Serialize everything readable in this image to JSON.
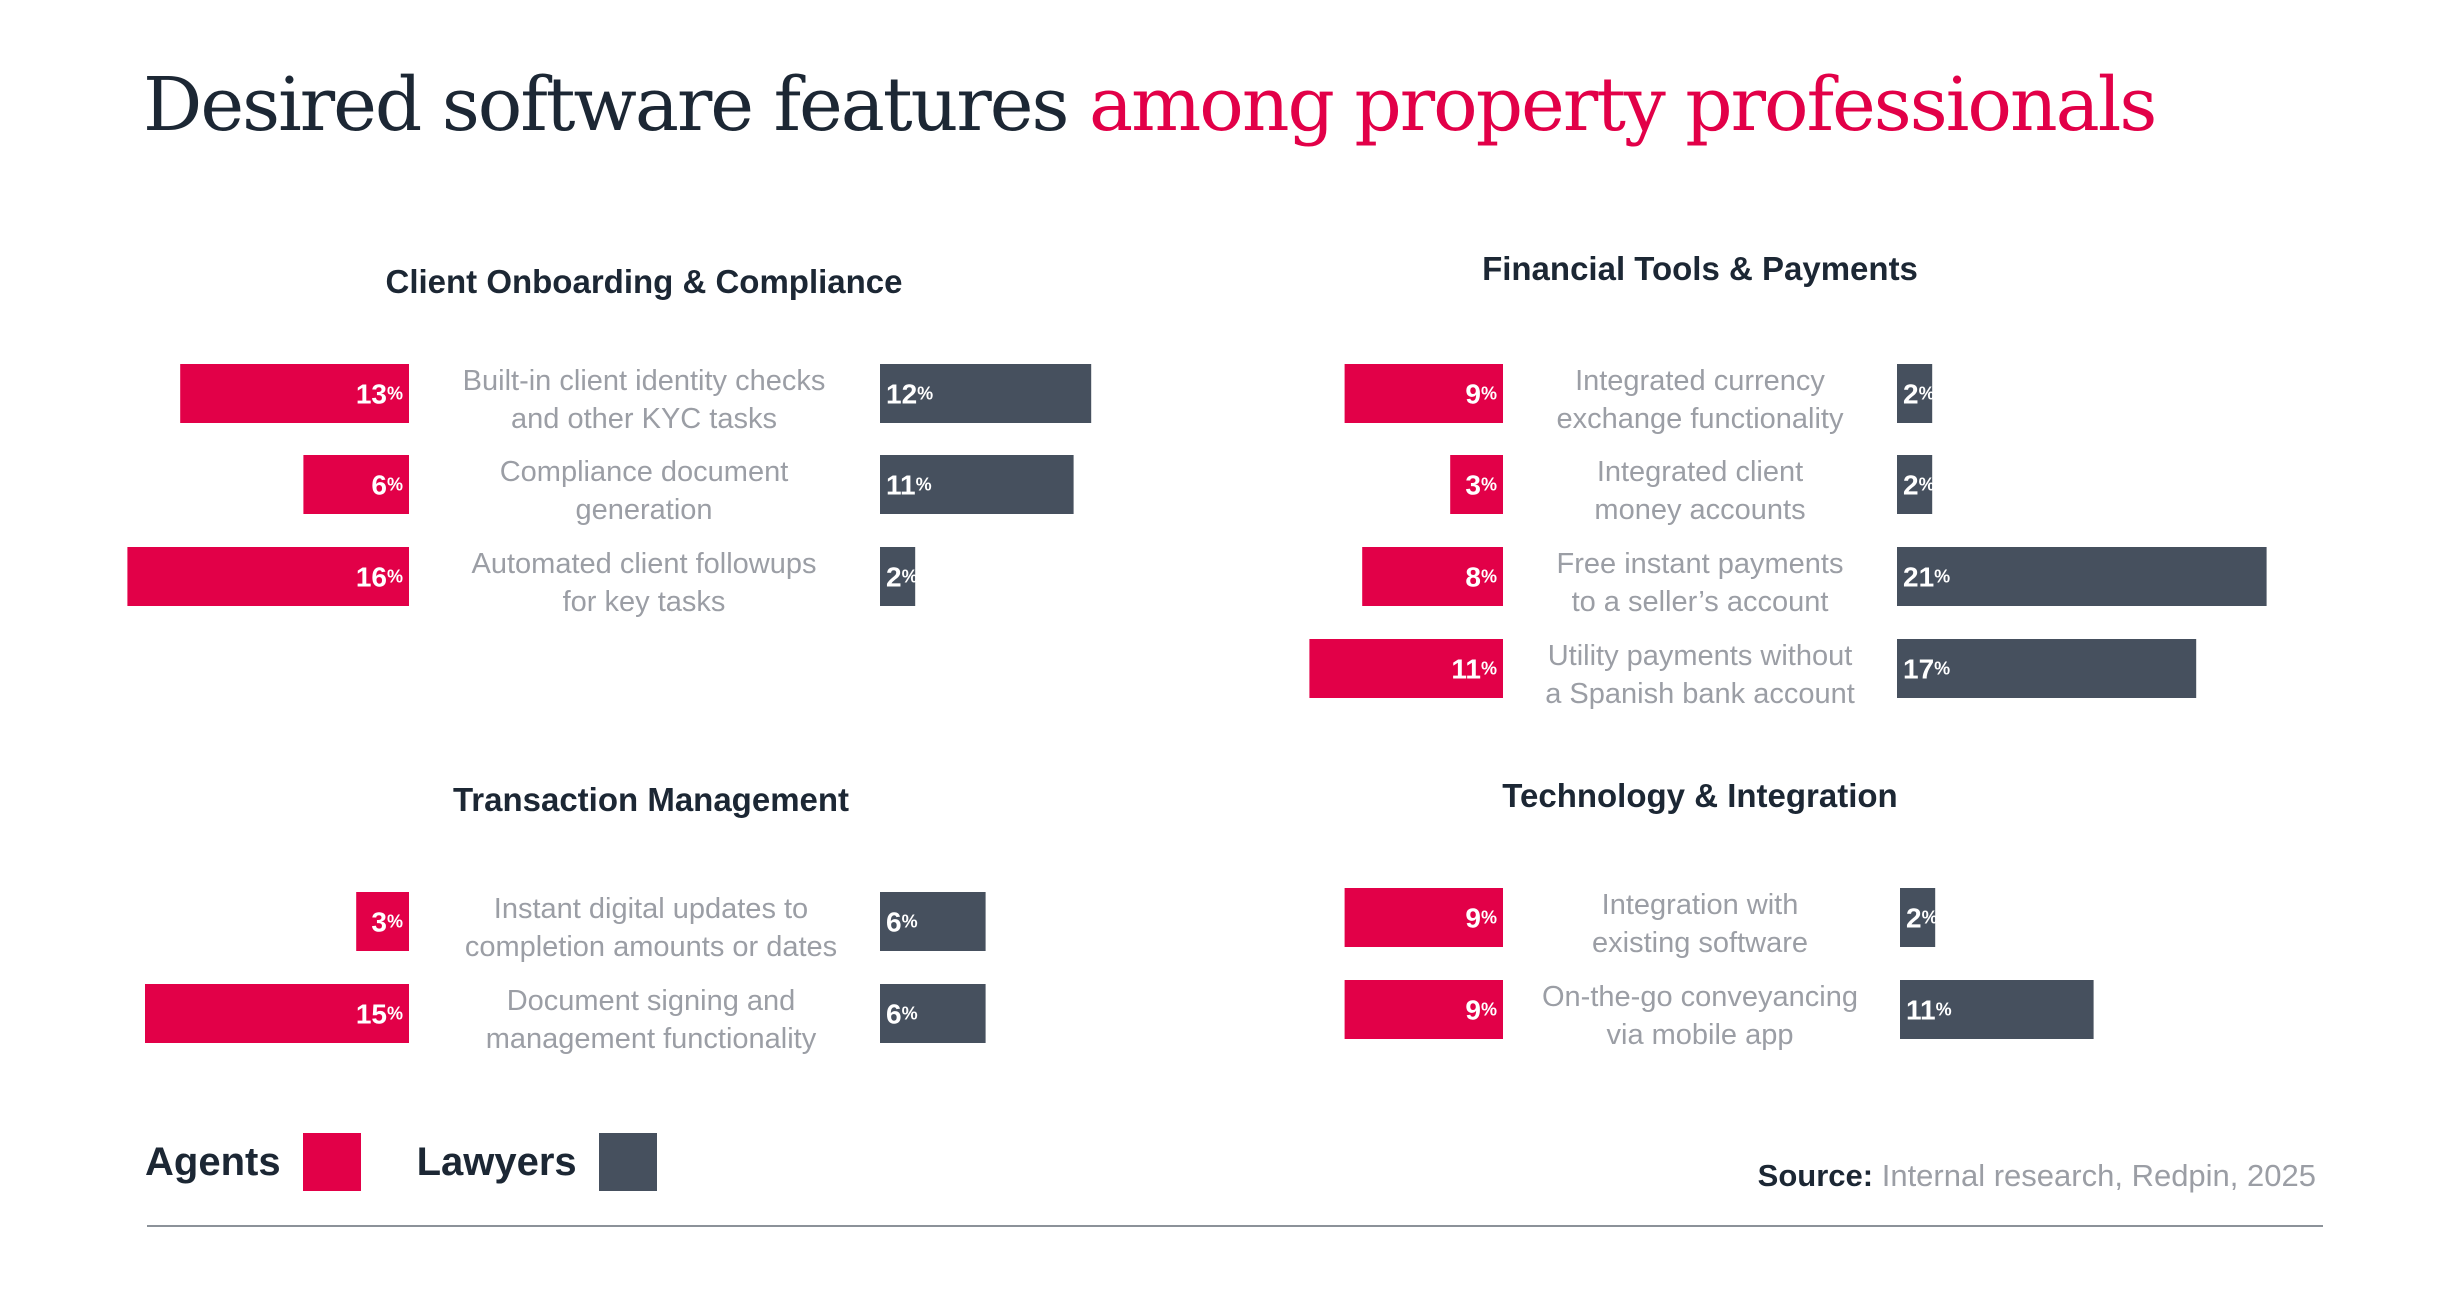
{
  "title": {
    "main": "Desired software features",
    "accent": "among property professionals"
  },
  "colors": {
    "agents": "#e20048",
    "lawyers": "#46505e",
    "accent": "#e20048",
    "text": "#1c2734",
    "muted": "#9b9ea5"
  },
  "chart_data": [
    {
      "type": "bar",
      "orientation": "horizontal-butterfly",
      "title": "Client Onboarding & Compliance",
      "categories": [
        [
          "Built-in client identity checks",
          "and other KYC tasks"
        ],
        [
          "Compliance document",
          "generation"
        ],
        [
          "Automated client followups",
          "for key tasks"
        ]
      ],
      "series": [
        {
          "name": "Agents",
          "values": [
            13,
            6,
            16
          ]
        },
        {
          "name": "Lawyers",
          "values": [
            12,
            11,
            2
          ]
        }
      ],
      "unit": "%"
    },
    {
      "type": "bar",
      "orientation": "horizontal-butterfly",
      "title": "Financial Tools  & Payments",
      "categories": [
        [
          "Integrated currency",
          "exchange functionality"
        ],
        [
          "Integrated client",
          "money accounts"
        ],
        [
          "Free instant payments",
          "to a seller’s account"
        ],
        [
          "Utility payments without",
          "a Spanish bank account"
        ]
      ],
      "series": [
        {
          "name": "Agents",
          "values": [
            9,
            3,
            8,
            11
          ]
        },
        {
          "name": "Lawyers",
          "values": [
            2,
            2,
            21,
            17
          ]
        }
      ],
      "unit": "%"
    },
    {
      "type": "bar",
      "orientation": "horizontal-butterfly",
      "title": "Transaction Management",
      "categories": [
        [
          "Instant digital updates to",
          "completion amounts or dates"
        ],
        [
          "Document signing and",
          "management functionality"
        ]
      ],
      "series": [
        {
          "name": "Agents",
          "values": [
            3,
            15
          ]
        },
        {
          "name": "Lawyers",
          "values": [
            6,
            6
          ]
        }
      ],
      "unit": "%"
    },
    {
      "type": "bar",
      "orientation": "horizontal-butterfly",
      "title": "Technology  & Integration",
      "categories": [
        [
          "Integration with",
          "existing software"
        ],
        [
          "On-the-go conveyancing",
          "via mobile app"
        ]
      ],
      "series": [
        {
          "name": "Agents",
          "values": [
            9,
            9
          ]
        },
        {
          "name": "Lawyers",
          "values": [
            2,
            11
          ]
        }
      ],
      "unit": "%"
    }
  ],
  "legend": {
    "agents": "Agents",
    "lawyers": "Lawyers"
  },
  "source": {
    "label": "Source:",
    "text": "Internal research, Redpin, 2025"
  }
}
